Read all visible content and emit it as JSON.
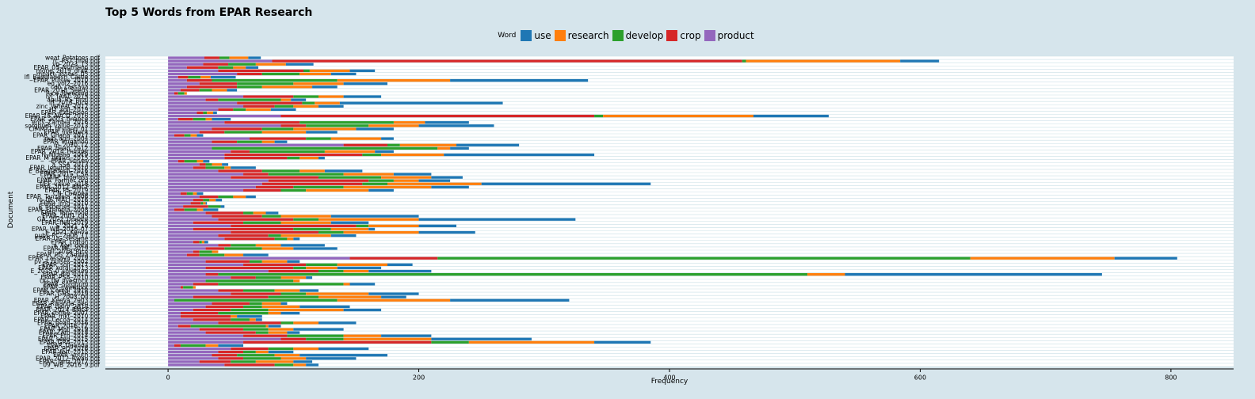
{
  "chart_data": {
    "type": "bar",
    "orientation": "horizontal",
    "stacked": true,
    "title": "Top 5 Words from EPAR Research",
    "xlabel": "Frequency",
    "ylabel": "Document",
    "xlim": [
      -50,
      850
    ],
    "xticks": [
      0,
      200,
      400,
      600,
      800
    ],
    "legend_title": "Word",
    "legend_position": "top-center",
    "series": [
      {
        "name": "use",
        "color": "#1f77b4"
      },
      {
        "name": "research",
        "color": "#ff7f0e"
      },
      {
        "name": "develop",
        "color": "#2ca02c"
      },
      {
        "name": "crop",
        "color": "#d62728"
      },
      {
        "name": "product",
        "color": "#9467bd"
      }
    ],
    "stack_order": [
      "product",
      "crop",
      "develop",
      "research",
      "use"
    ],
    "documents": [
      {
        "name": "weat_Potatoes.pdf",
        "product": 29,
        "crop": 12,
        "develop": 8,
        "research": 15,
        "use": 10
      },
      {
        "name": "rc_PS7_final.pdf",
        "product": 83,
        "crop": 375,
        "develop": 3,
        "research": 123,
        "use": 31
      },
      {
        "name": "vg_2023_13.pdf",
        "product": 28,
        "crop": 20,
        "develop": 22,
        "research": 24,
        "use": 22
      },
      {
        "name": "EPAR_05_Nutrition.pdf",
        "product": 15,
        "crop": 25,
        "develop": 12,
        "research": 10,
        "use": 10
      },
      {
        "name": "mong_2019_draft.pdf",
        "product": 40,
        "crop": 68,
        "develop": 5,
        "research": 32,
        "use": 20
      },
      {
        "name": "mpact_assess_05.pdf",
        "product": 55,
        "crop": 20,
        "develop": 30,
        "research": 25,
        "use": 20
      },
      {
        "name": "lfl_Bangladesh_Cattle.pdf",
        "product": 8,
        "crop": 8,
        "develop": 10,
        "research": 8,
        "use": 20
      },
      {
        "name": "EPAR_Pulses_2010.pdf",
        "product": 15,
        "crop": 20,
        "develop": 100,
        "research": 90,
        "use": 110
      },
      {
        "name": "ed_vol2_2016.pdf",
        "product": 25,
        "crop": 30,
        "develop": 45,
        "research": 40,
        "use": 35
      },
      {
        "name": "cdb_cassava.pdf",
        "product": 15,
        "crop": 40,
        "develop": 20,
        "research": 40,
        "use": 20
      },
      {
        "name": "EPAR_2018_Seeds.pdf",
        "product": 10,
        "crop": 15,
        "develop": 10,
        "research": 12,
        "use": 8
      },
      {
        "name": "Rice_Breeding.pdf",
        "product": 5,
        "crop": 3,
        "develop": 5,
        "research": 2,
        "use": 0
      },
      {
        "name": "lvl_TAAT_2015.pdf",
        "product": 60,
        "crop": 40,
        "develop": 20,
        "research": 20,
        "use": 30
      },
      {
        "name": "aqua_RS_final.pdf",
        "product": 30,
        "crop": 10,
        "develop": 50,
        "research": 8,
        "use": 12
      },
      {
        "name": "lfl_2016_Rice.pdf",
        "product": 55,
        "crop": 52,
        "develop": 10,
        "research": 20,
        "use": 130
      },
      {
        "name": "zinc_Wheat_2012.pdf",
        "product": 60,
        "crop": 25,
        "develop": 15,
        "research": 20,
        "use": 20
      },
      {
        "name": "HY_soil_2019.pdf",
        "product": 40,
        "crop": 12,
        "develop": 10,
        "research": 20,
        "use": 20
      },
      {
        "name": "EPAR_Extension.pdf",
        "product": 23,
        "crop": 5,
        "develop": 3,
        "research": 5,
        "use": 3
      },
      {
        "name": "EPAR_18_AVCD_2016.pdf",
        "product": 90,
        "crop": 250,
        "develop": 7,
        "research": 120,
        "use": 60
      },
      {
        "name": "EPAR_2003_finance.pdf",
        "product": 8,
        "crop": 12,
        "develop": 10,
        "research": 5,
        "use": 15
      },
      {
        "name": "ents_Zambia_2016.pdf",
        "product": 45,
        "crop": 60,
        "develop": 75,
        "research": 25,
        "use": 35
      },
      {
        "name": "sorghum_value_2013.pdf",
        "product": 90,
        "crop": 20,
        "develop": 50,
        "research": 40,
        "use": 60
      },
      {
        "name": "CIMMYT_dryland_01.pdf",
        "product": 35,
        "crop": 40,
        "develop": 25,
        "research": 50,
        "use": 30
      },
      {
        "name": "EPAR_livestock.pdf",
        "product": 25,
        "crop": 20,
        "develop": 30,
        "research": 35,
        "use": 25
      },
      {
        "name": "EPAR_Ghana_2017.pdf",
        "product": 5,
        "crop": 8,
        "develop": 5,
        "research": 5,
        "use": 5
      },
      {
        "name": "pub_agri_2004.pdf",
        "product": 65,
        "crop": 45,
        "develop": 20,
        "research": 40,
        "use": 10
      },
      {
        "name": "EPAR_Irrigation.pdf",
        "product": 35,
        "crop": 20,
        "develop": 20,
        "research": 10,
        "use": 10
      },
      {
        "name": "m_2020_TZ.pdf",
        "product": 140,
        "crop": 35,
        "develop": 10,
        "research": 45,
        "use": 50
      },
      {
        "name": "EPAR_bean_2012.pdf",
        "product": 35,
        "crop": 0,
        "develop": 180,
        "research": 10,
        "use": 15
      },
      {
        "name": "EPAR_2014_Hunger.pdf",
        "product": 50,
        "crop": 15,
        "develop": 60,
        "research": 40,
        "use": 15
      },
      {
        "name": "H_Nigeria_2019.pdf",
        "product": 45,
        "crop": 110,
        "develop": 15,
        "research": 50,
        "use": 120
      },
      {
        "name": "EPAR_M_grains_2015.pdf",
        "product": 45,
        "crop": 50,
        "develop": 10,
        "research": 15,
        "use": 5
      },
      {
        "name": "EPAR_survey.pdf",
        "product": 8,
        "crop": 5,
        "develop": 10,
        "research": 5,
        "use": 5
      },
      {
        "name": "a_SSA_2013.pdf",
        "product": 25,
        "crop": 5,
        "develop": 5,
        "research": 8,
        "use": 5
      },
      {
        "name": "EPAR_legume_2010.pdf",
        "product": 20,
        "crop": 10,
        "develop": 15,
        "research": 5,
        "use": 20
      },
      {
        "name": "E_Bangladesh_2016.pdf",
        "product": 40,
        "crop": 35,
        "develop": 30,
        "research": 20,
        "use": 30
      },
      {
        "name": "EPAR_2015_CSA.pdf",
        "product": 60,
        "crop": 20,
        "develop": 60,
        "research": 40,
        "use": 30
      },
      {
        "name": "GARP_biomass.pdf",
        "product": 50,
        "crop": 70,
        "develop": 50,
        "research": 40,
        "use": 25
      },
      {
        "name": "EPAR_Farmer_org.pdf",
        "product": 80,
        "crop": 80,
        "develop": 20,
        "research": 20,
        "use": 25
      },
      {
        "name": "tIEF_value_2018.pdf",
        "product": 75,
        "crop": 80,
        "develop": 20,
        "research": 75,
        "use": 135
      },
      {
        "name": "EPAR_2012_BMGF.pdf",
        "product": 70,
        "crop": 30,
        "develop": 40,
        "research": 70,
        "use": 30
      },
      {
        "name": "EPAR_PS_2019.pdf",
        "product": 60,
        "crop": 30,
        "develop": 20,
        "research": 50,
        "use": 20
      },
      {
        "name": "CN_Cowpea.pdf",
        "product": 10,
        "crop": 5,
        "develop": 5,
        "research": 3,
        "use": 5
      },
      {
        "name": "EPAR_Tanzania_2006.pdf",
        "product": 25,
        "crop": 15,
        "develop": 12,
        "research": 10,
        "use": 8
      },
      {
        "name": "rc_06_MALI_2016.pdf",
        "product": 20,
        "crop": 8,
        "develop": 5,
        "research": 5,
        "use": 5
      },
      {
        "name": "EPAR_irrig_2010.pdf",
        "product": 18,
        "crop": 8,
        "develop": 2,
        "research": 2,
        "use": 1
      },
      {
        "name": "E_fisheries_2011.pdf",
        "product": 12,
        "crop": 20,
        "develop": 10,
        "research": 0,
        "use": 3
      },
      {
        "name": "EPAR_Ethiopia_2008.pdf",
        "product": 5,
        "crop": 8,
        "develop": 10,
        "research": 5,
        "use": 12
      },
      {
        "name": "EPAR_Tanz_food.pdf",
        "product": 30,
        "crop": 30,
        "develop": 8,
        "research": 10,
        "use": 10
      },
      {
        "name": "EPAR_2001_GIS.pdf",
        "product": 35,
        "crop": 40,
        "develop": 15,
        "research": 40,
        "use": 70
      },
      {
        "name": "GA_2022_Update.pdf",
        "product": 40,
        "crop": 60,
        "develop": 20,
        "research": 80,
        "use": 125
      },
      {
        "name": "EPAR_INN_2019.pdf",
        "product": 20,
        "crop": 40,
        "develop": 30,
        "research": 40,
        "use": 30
      },
      {
        "name": "S_2021_16.pdf",
        "product": 50,
        "crop": 100,
        "develop": 10,
        "research": 40,
        "use": 30
      },
      {
        "name": "EPAR_WB_2016_07.pdf",
        "product": 20,
        "crop": 80,
        "develop": 30,
        "research": 30,
        "use": 5
      },
      {
        "name": "E_2021_Kenya.pdf",
        "product": 50,
        "crop": 70,
        "develop": 20,
        "research": 60,
        "use": 45
      },
      {
        "name": "pubs_PC_2006_11.pdf",
        "product": 40,
        "crop": 40,
        "develop": 10,
        "research": 40,
        "use": 20
      },
      {
        "name": "EPAR_UG_sesame.pdf",
        "product": 45,
        "crop": 40,
        "develop": 10,
        "research": 5,
        "use": 5
      },
      {
        "name": "EPAR_cotton.pdf",
        "product": 20,
        "crop": 5,
        "develop": 2,
        "research": 2,
        "use": 3
      },
      {
        "name": "a_Agri_data.pdf",
        "product": 40,
        "crop": 10,
        "develop": 20,
        "research": 20,
        "use": 35
      },
      {
        "name": "EPAR_ME_2019.pdf",
        "product": 30,
        "crop": 15,
        "develop": 30,
        "research": 25,
        "use": 35
      },
      {
        "name": "oil_2018_Rice.pdf",
        "product": 20,
        "crop": 5,
        "develop": 10,
        "research": 5,
        "use": 0
      },
      {
        "name": "EPAR_PG_Zambia.pdf",
        "product": 15,
        "crop": 10,
        "develop": 20,
        "research": 15,
        "use": 20
      },
      {
        "name": "EPAR_cassava_2019.pdf",
        "product": 145,
        "crop": 70,
        "develop": 425,
        "research": 115,
        "use": 50
      },
      {
        "name": "pv_3_pulses_2002.pdf",
        "product": 30,
        "crop": 35,
        "develop": 10,
        "research": 20,
        "use": 10
      },
      {
        "name": "EPAR_soil_2017.pdf",
        "product": 60,
        "crop": 50,
        "develop": 25,
        "research": 40,
        "use": 20
      },
      {
        "name": "EPAR_rural_2013.pdf",
        "product": 30,
        "crop": 70,
        "develop": 10,
        "research": 25,
        "use": 35
      },
      {
        "name": "E_2015_0_sorghum.pdf",
        "product": 80,
        "crop": 40,
        "develop": 20,
        "research": 20,
        "use": 50
      },
      {
        "name": "EPAR_Bio_2014.pdf",
        "product": 30,
        "crop": 10,
        "develop": 470,
        "research": 30,
        "use": 205
      },
      {
        "name": "EPAR_PSA_2010.pdf",
        "product": 50,
        "crop": 20,
        "develop": 20,
        "research": 20,
        "use": 5
      },
      {
        "name": "UG_09_livestock.pdf",
        "product": 30,
        "crop": 0,
        "develop": 70,
        "research": 5,
        "use": 0
      },
      {
        "name": "EPAR_Sorghum.pdf",
        "product": 20,
        "crop": 20,
        "develop": 100,
        "research": 5,
        "use": 20
      },
      {
        "name": "EPAR_sweetpot.pdf",
        "product": 10,
        "crop": 2,
        "develop": 8,
        "research": 2,
        "use": 0
      },
      {
        "name": "EPAR_Cereal_2018.pdf",
        "product": 40,
        "crop": 20,
        "develop": 25,
        "research": 20,
        "use": 15
      },
      {
        "name": "EPAR_GHS_2019.pdf",
        "product": 50,
        "crop": 40,
        "develop": 20,
        "research": 50,
        "use": 40
      },
      {
        "name": "H_2003_Oil.pdf",
        "product": 20,
        "crop": 60,
        "develop": 40,
        "research": 50,
        "use": 20
      },
      {
        "name": "EPAR_Kenya_2003.pdf",
        "product": 5,
        "crop": 0,
        "develop": 130,
        "research": 90,
        "use": 95
      },
      {
        "name": "EPAR_Rwanda_gen.pdf",
        "product": 35,
        "crop": 30,
        "develop": 10,
        "research": 15,
        "use": 5
      },
      {
        "name": "EPAR_dairy_2018.pdf",
        "product": 30,
        "crop": 30,
        "develop": 15,
        "research": 30,
        "use": 40
      },
      {
        "name": "EPAR_2014_BMGF.pdf",
        "product": 20,
        "crop": 30,
        "develop": 30,
        "research": 60,
        "use": 30
      },
      {
        "name": "EPAR_coffee_2007.pdf",
        "product": 10,
        "crop": 30,
        "develop": 40,
        "research": 10,
        "use": 15
      },
      {
        "name": "EPAR_mkt_2010.pdf",
        "product": 10,
        "crop": 40,
        "develop": 0,
        "research": 5,
        "use": 20
      },
      {
        "name": "EPAR_Cocoa_2014.pdf",
        "product": 20,
        "crop": 30,
        "develop": 15,
        "research": 5,
        "use": 5
      },
      {
        "name": "EPAR_bean_2016.pdf",
        "product": 40,
        "crop": 50,
        "develop": 10,
        "research": 20,
        "use": 30
      },
      {
        "name": "EPAR_2016_TZ.pdf",
        "product": 8,
        "crop": 10,
        "develop": 60,
        "research": 2,
        "use": 10
      },
      {
        "name": "EPAR_Mali_2019.pdf",
        "product": 25,
        "crop": 35,
        "develop": 20,
        "research": 20,
        "use": 40
      },
      {
        "name": "EPAR_Zam_2018.pdf",
        "product": 30,
        "crop": 40,
        "develop": 10,
        "research": 15,
        "use": 10
      },
      {
        "name": "EPAR_Eth_2014.pdf",
        "product": 60,
        "crop": 35,
        "develop": 45,
        "research": 30,
        "use": 40
      },
      {
        "name": "EPAR_seed_2015.pdf",
        "product": 90,
        "crop": 20,
        "develop": 30,
        "research": 70,
        "use": 80
      },
      {
        "name": "EPAR_GRA_2015.pdf",
        "product": 60,
        "crop": 150,
        "develop": 30,
        "research": 100,
        "use": 45
      },
      {
        "name": "EPAR_Uganda.pdf",
        "product": 5,
        "crop": 5,
        "develop": 20,
        "research": 10,
        "use": 20
      },
      {
        "name": "EPAR_PO_2016.pdf",
        "product": 50,
        "crop": 30,
        "develop": 20,
        "research": 20,
        "use": 40
      },
      {
        "name": "EPAR_fert_2015.pdf",
        "product": 40,
        "crop": 20,
        "develop": 10,
        "research": 10,
        "use": 20
      },
      {
        "name": "EPAR_youth.pdf",
        "product": 35,
        "crop": 20,
        "develop": 30,
        "research": 20,
        "use": 70
      },
      {
        "name": "EPAR_2012_Rwan.pdf",
        "product": 40,
        "crop": 20,
        "develop": 30,
        "research": 20,
        "use": 40
      },
      {
        "name": "EPAR_Tanz_2017.pdf",
        "product": 25,
        "crop": 25,
        "develop": 20,
        "research": 30,
        "use": 15
      },
      {
        "name": "_09_WB_2016_9.pdf",
        "product": 45,
        "crop": 40,
        "develop": 15,
        "research": 10,
        "use": 10
      }
    ]
  }
}
